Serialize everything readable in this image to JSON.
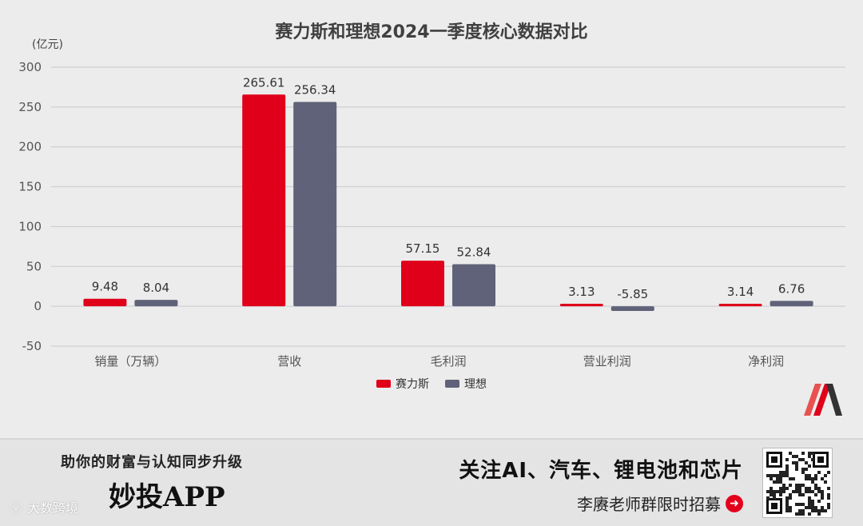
{
  "colors": {
    "accent_red": "#e0001a",
    "accent_gray": "#5f6278",
    "grid": "#c8c8d0",
    "background": "#ececec"
  },
  "chart_data": {
    "type": "bar",
    "title": "赛力斯和理想2024一季度核心数据对比",
    "unit_label": "(亿元)",
    "categories": [
      "销量（万辆）",
      "营收",
      "毛利润",
      "营业利润",
      "净利润"
    ],
    "series": [
      {
        "name": "赛力斯",
        "color": "#e0001a",
        "values": [
          9.48,
          265.61,
          57.15,
          3.13,
          3.14
        ]
      },
      {
        "name": "理想",
        "color": "#5f6278",
        "values": [
          8.04,
          256.34,
          52.84,
          -5.85,
          6.76
        ]
      }
    ],
    "ylim": [
      -50,
      300
    ],
    "yticks": [
      300,
      250,
      200,
      150,
      100,
      50,
      0,
      -50
    ],
    "grid": true,
    "legend_position": "bottom-center"
  },
  "logo": {
    "icon": "brand-m-icon"
  },
  "banner": {
    "tagline": "助你的财富与认知同步升级",
    "brand": "妙投APP",
    "watermark": "大数跨境",
    "headline": "关注AI、汽车、锂电池和芯片",
    "sub": "李赓老师群限时招募",
    "arrow_icon": "arrow-right-circle-icon",
    "qr_icon": "qr-code-icon"
  }
}
